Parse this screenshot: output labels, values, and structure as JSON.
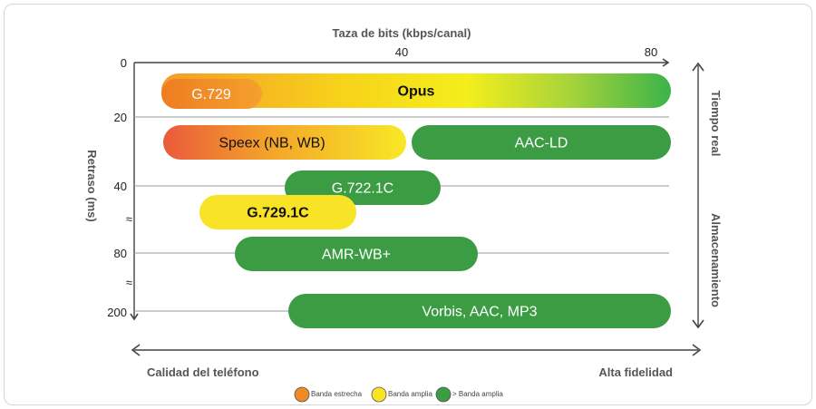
{
  "chart_data": {
    "type": "range-bar",
    "x_axis": {
      "label": "Taza de bits (kbps/canal)",
      "ticks": [
        40,
        80
      ],
      "range": [
        0,
        80
      ]
    },
    "y_axis": {
      "label": "Retraso (ms)",
      "ticks": [
        "0",
        "20",
        "40",
        "80",
        "200"
      ],
      "breaks": [
        "≈",
        "≈"
      ]
    },
    "right_labels": {
      "top": "Tiempo real",
      "bottom": "Almacenamiento"
    },
    "bottom_labels": {
      "left": "Calidad del teléfono",
      "right": "Alta fidelidad"
    },
    "bars": [
      {
        "name": "Opus",
        "x_start": 4,
        "x_end": 80,
        "delay": "0-20",
        "band": "mixed",
        "colors": [
          "#f59a2a",
          "#f7e21a",
          "#3bb34a"
        ]
      },
      {
        "name": "G.729",
        "x_start": 4,
        "x_end": 19,
        "delay": "0-20",
        "band": "narrow",
        "colors": [
          "#f08a24"
        ]
      },
      {
        "name": "Speex (NB, WB)",
        "x_start": 4,
        "x_end": 44,
        "delay": "20-40",
        "band": "mixed",
        "colors": [
          "#ea5a3c",
          "#f8e326"
        ]
      },
      {
        "name": "AAC-LD",
        "x_start": 45,
        "x_end": 80,
        "delay": "20-40",
        "band": "super-wide",
        "colors": [
          "#3c9c44"
        ]
      },
      {
        "name": "G.722.1C",
        "x_start": 24,
        "x_end": 48,
        "delay": "40",
        "band": "super-wide",
        "colors": [
          "#3c9c44"
        ]
      },
      {
        "name": "G.729.1C",
        "x_start": 10,
        "x_end": 35,
        "delay": "40-80",
        "band": "wide",
        "colors": [
          "#f8e326"
        ]
      },
      {
        "name": "AMR-WB+",
        "x_start": 16,
        "x_end": 54,
        "delay": "80",
        "band": "super-wide",
        "colors": [
          "#3c9c44"
        ]
      },
      {
        "name": "Vorbis, AAC, MP3",
        "x_start": 24,
        "x_end": 80,
        "delay": "200",
        "band": "super-wide",
        "colors": [
          "#3c9c44"
        ]
      }
    ],
    "legend": [
      {
        "label": "Banda estrecha",
        "color": "#f08a24"
      },
      {
        "label": "Banda amplia",
        "color": "#f8e326"
      },
      {
        "label": "> Banda amplia",
        "color": "#3c9c44"
      }
    ]
  }
}
